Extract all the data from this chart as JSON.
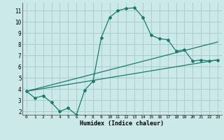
{
  "title": "",
  "xlabel": "Humidex (Indice chaleur)",
  "ylabel": "",
  "xlim": [
    -0.5,
    23.5
  ],
  "ylim": [
    1.7,
    11.7
  ],
  "yticks": [
    2,
    3,
    4,
    5,
    6,
    7,
    8,
    9,
    10,
    11
  ],
  "xticks": [
    0,
    1,
    2,
    3,
    4,
    5,
    6,
    7,
    8,
    9,
    10,
    11,
    12,
    13,
    14,
    15,
    16,
    17,
    18,
    19,
    20,
    21,
    22,
    23
  ],
  "background_color": "#cce9e9",
  "grid_color": "#aacccc",
  "line_color": "#1a7a6e",
  "curve1_x": [
    0,
    1,
    2,
    3,
    4,
    5,
    6,
    7,
    8,
    9,
    10,
    11,
    12,
    13,
    14,
    15,
    16,
    17,
    18,
    19,
    20,
    21,
    22,
    23
  ],
  "curve1_y": [
    3.8,
    3.2,
    3.4,
    2.8,
    2.0,
    2.3,
    1.7,
    3.9,
    4.7,
    8.6,
    10.4,
    11.0,
    11.2,
    11.25,
    10.4,
    8.8,
    8.5,
    8.4,
    7.4,
    7.5,
    6.5,
    6.6,
    6.5,
    6.6
  ],
  "curve2_x": [
    0,
    23
  ],
  "curve2_y": [
    3.8,
    6.6
  ],
  "curve3_x": [
    0,
    23
  ],
  "curve3_y": [
    3.8,
    8.2
  ]
}
